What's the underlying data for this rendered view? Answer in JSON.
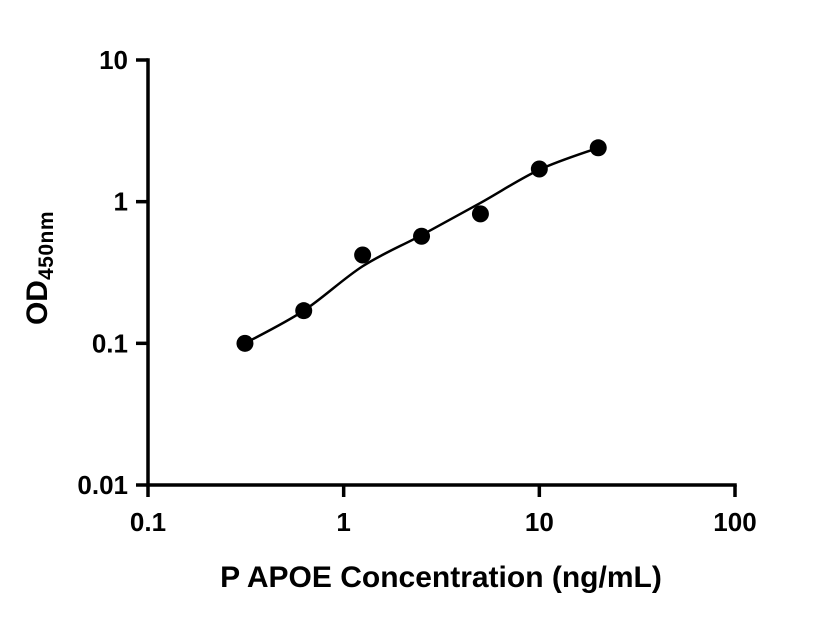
{
  "figure": {
    "background": "#ffffff"
  },
  "chart_data": {
    "type": "scatter",
    "title": "",
    "xlabel": "P APOE Concentration (ng/mL)",
    "ylabel": {
      "main": "OD",
      "sub": "450nm"
    },
    "x_scale": "log",
    "y_scale": "log",
    "xlim": [
      0.1,
      100
    ],
    "ylim": [
      0.01,
      10
    ],
    "x_tick_values": [
      0.1,
      1,
      10,
      100
    ],
    "x_tick_labels": [
      "0.1",
      "1",
      "10",
      "100"
    ],
    "y_tick_values": [
      0.01,
      0.1,
      1,
      10
    ],
    "y_tick_labels": [
      "0.01",
      "0.1",
      "1",
      "10"
    ],
    "grid": false,
    "legend": "none",
    "points": {
      "x": [
        0.313,
        0.625,
        1.25,
        2.5,
        5,
        10,
        20
      ],
      "y": [
        0.1,
        0.17,
        0.42,
        0.57,
        0.82,
        1.7,
        2.4
      ]
    },
    "fit_curve": {
      "x": [
        0.313,
        0.625,
        1.25,
        2.5,
        5,
        10,
        20
      ],
      "y": [
        0.1,
        0.17,
        0.35,
        0.58,
        0.98,
        1.68,
        2.4
      ]
    },
    "marker_color": "#000000",
    "line_color": "#000000",
    "axis_color": "#000000"
  }
}
